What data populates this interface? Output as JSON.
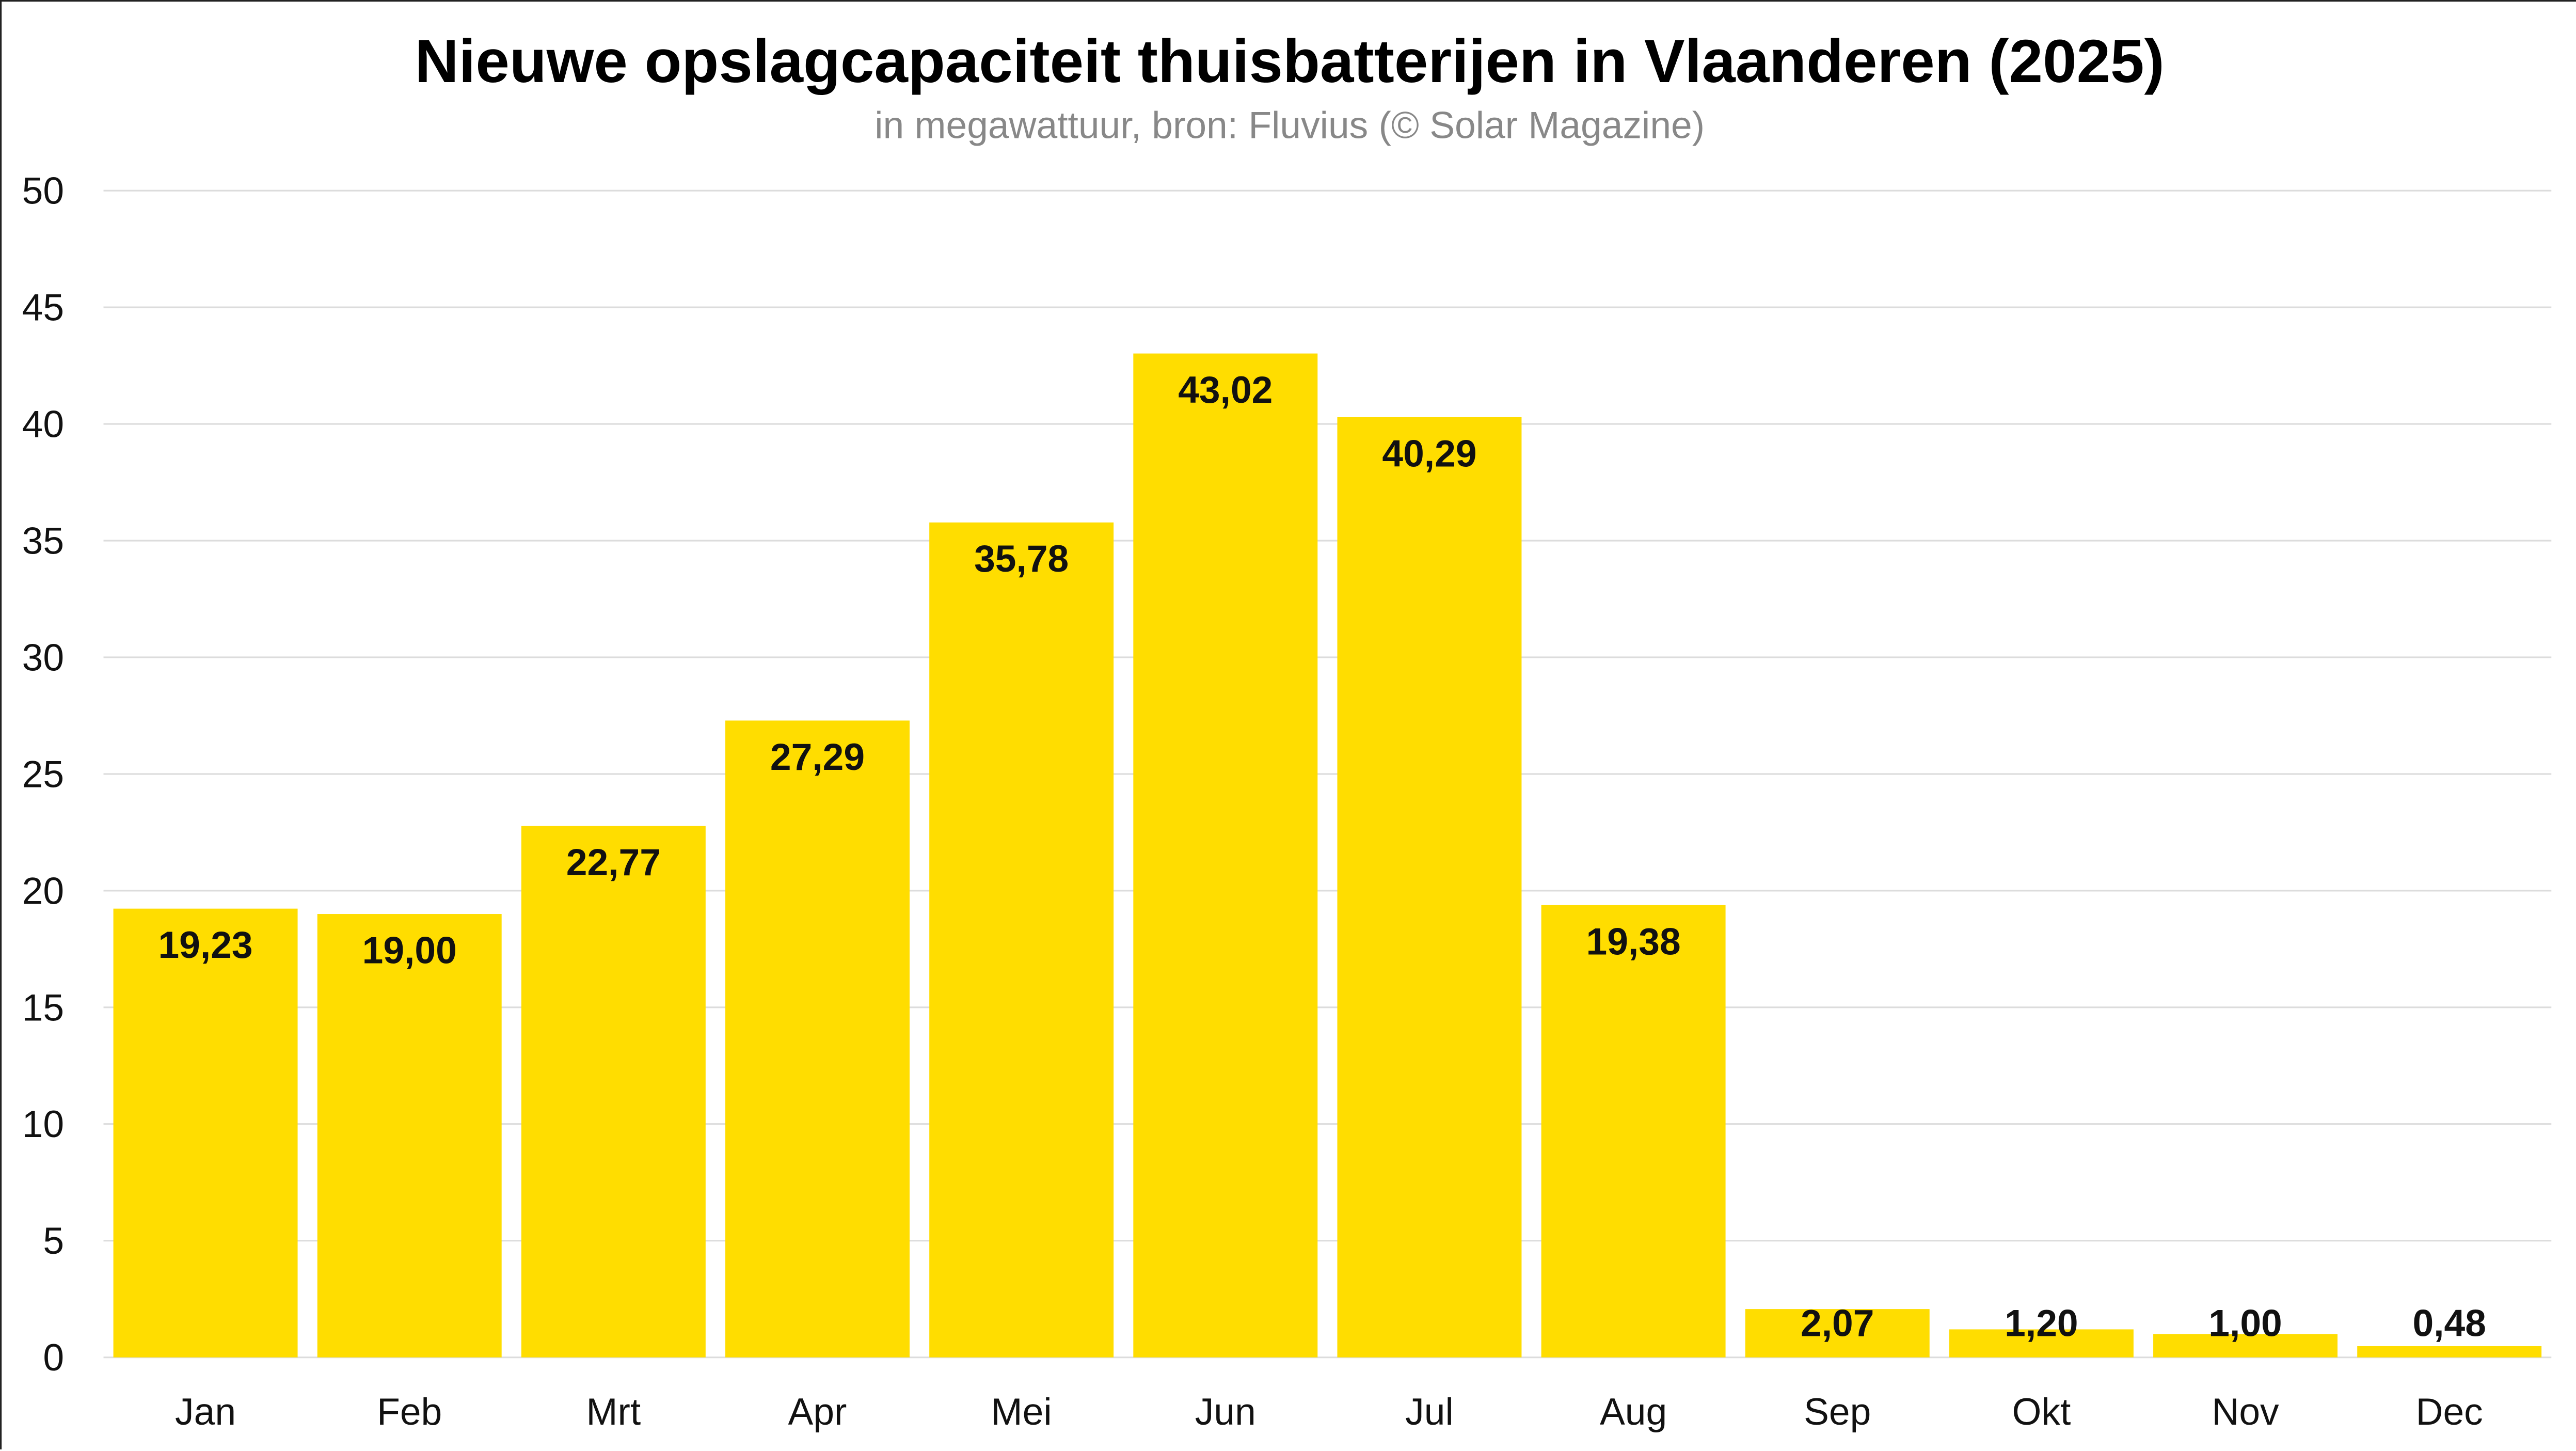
{
  "chart_data": {
    "type": "bar",
    "title": "Nieuwe opslagcapaciteit thuisbatterijen in Vlaanderen (2025)",
    "subtitle": "in megawattuur, bron: Fluvius (© Solar Magazine)",
    "xlabel": "",
    "ylabel": "",
    "categories": [
      "Jan",
      "Feb",
      "Mrt",
      "Apr",
      "Mei",
      "Jun",
      "Jul",
      "Aug",
      "Sep",
      "Okt",
      "Nov",
      "Dec"
    ],
    "values": [
      19.23,
      19.0,
      22.77,
      27.29,
      35.78,
      43.02,
      40.29,
      19.38,
      2.07,
      1.2,
      1.0,
      0.48
    ],
    "value_labels": [
      "19,23",
      "19,00",
      "22,77",
      "27,29",
      "35,78",
      "43,02",
      "40,29",
      "19,38",
      "2,07",
      "1,20",
      "1,00",
      "0,48"
    ],
    "ylim": [
      0,
      50
    ],
    "yticks": [
      0,
      5,
      10,
      15,
      20,
      25,
      30,
      35,
      40,
      45,
      50
    ],
    "grid": true,
    "legend": "none",
    "bar_color": "#FFDD00"
  }
}
